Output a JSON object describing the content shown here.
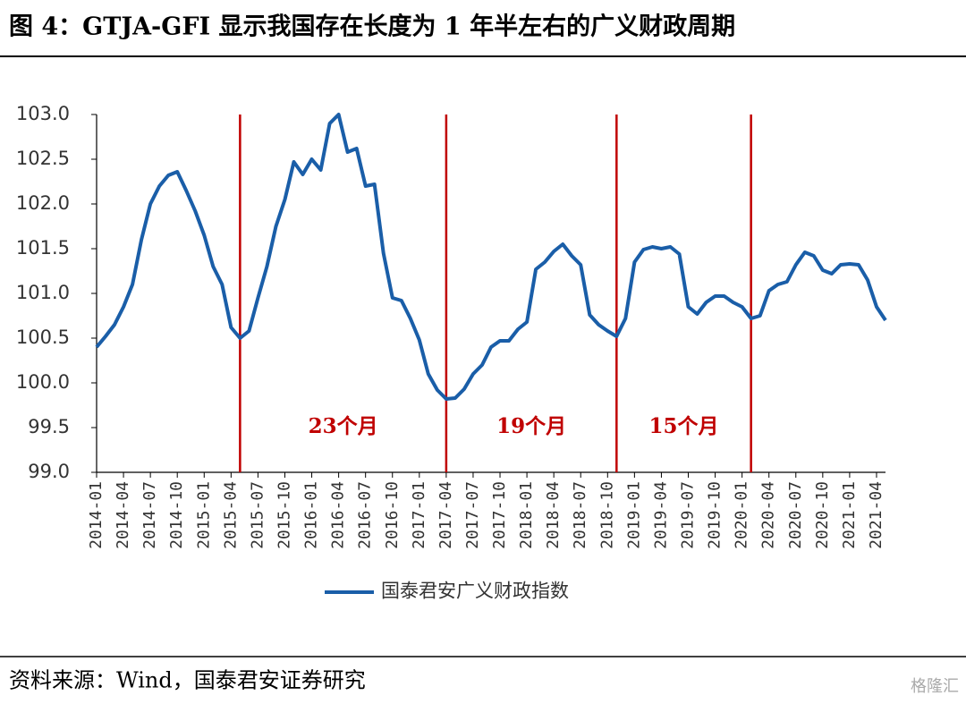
{
  "chart_data": {
    "type": "line",
    "title": "图 4：GTJA-GFI 显示我国存在长度为 1 年半左右的广义财政周期",
    "source": "资料来源：Wind，国泰君安证券研究",
    "watermark": "格隆汇",
    "categories": [
      "2014-01",
      null,
      null,
      "2014-04",
      null,
      null,
      "2014-07",
      null,
      null,
      "2014-10",
      null,
      null,
      "2015-01",
      null,
      null,
      "2015-04",
      null,
      null,
      "2015-07",
      null,
      null,
      "2015-10",
      null,
      null,
      "2016-01",
      null,
      null,
      "2016-04",
      null,
      null,
      "2016-07",
      null,
      null,
      "2016-10",
      null,
      null,
      "2017-01",
      null,
      null,
      "2017-04",
      null,
      null,
      "2017-07",
      null,
      null,
      "2017-10",
      null,
      null,
      "2018-01",
      null,
      null,
      "2018-04",
      null,
      null,
      "2018-07",
      null,
      null,
      "2018-10",
      null,
      null,
      "2019-01",
      null,
      null,
      "2019-04",
      null,
      null,
      "2019-07",
      null,
      null,
      "2019-10",
      null,
      null,
      "2020-01",
      null,
      null,
      "2020-04",
      null,
      null,
      "2020-07",
      null,
      null,
      "2020-10",
      null,
      null,
      "2021-01",
      null,
      null,
      "2021-04",
      null
    ],
    "series": [
      {
        "name": "国泰君安广义财政指数",
        "color": "#1a5ea8",
        "values": [
          100.4,
          100.52,
          100.65,
          100.85,
          101.1,
          101.6,
          102.0,
          102.2,
          102.32,
          102.36,
          102.15,
          101.92,
          101.65,
          101.3,
          101.1,
          100.62,
          100.5,
          100.58,
          100.95,
          101.3,
          101.75,
          102.05,
          102.47,
          102.33,
          102.5,
          102.38,
          102.9,
          103.0,
          102.58,
          102.62,
          102.2,
          102.22,
          101.45,
          100.95,
          100.92,
          100.72,
          100.48,
          100.1,
          99.92,
          99.82,
          99.83,
          99.93,
          100.1,
          100.2,
          100.4,
          100.47,
          100.47,
          100.6,
          100.68,
          101.27,
          101.35,
          101.47,
          101.55,
          101.42,
          101.32,
          100.76,
          100.65,
          100.58,
          100.52,
          100.72,
          101.35,
          101.49,
          101.52,
          101.5,
          101.52,
          101.44,
          100.85,
          100.77,
          100.9,
          100.97,
          100.97,
          100.9,
          100.85,
          100.72,
          100.75,
          101.03,
          101.1,
          101.13,
          101.32,
          101.46,
          101.42,
          101.26,
          101.22,
          101.32,
          101.33,
          101.32,
          101.15,
          100.85,
          100.7
        ]
      }
    ],
    "ylim": [
      99,
      103
    ],
    "yticks": [
      {
        "value": 99,
        "label": "99.0"
      },
      99.5,
      {
        "value": 100,
        "label": "100.0"
      },
      100.5,
      {
        "value": 101,
        "label": "101.0"
      },
      101.5,
      {
        "value": 102,
        "label": "102.0"
      },
      102.5,
      {
        "value": 103,
        "label": "103.0"
      }
    ],
    "cycle_lines": {
      "color": "#c00000",
      "at": [
        16,
        39,
        58,
        73
      ],
      "labels": [
        "23个月",
        "19个月",
        "15个月"
      ]
    },
    "legend": "bottom"
  }
}
